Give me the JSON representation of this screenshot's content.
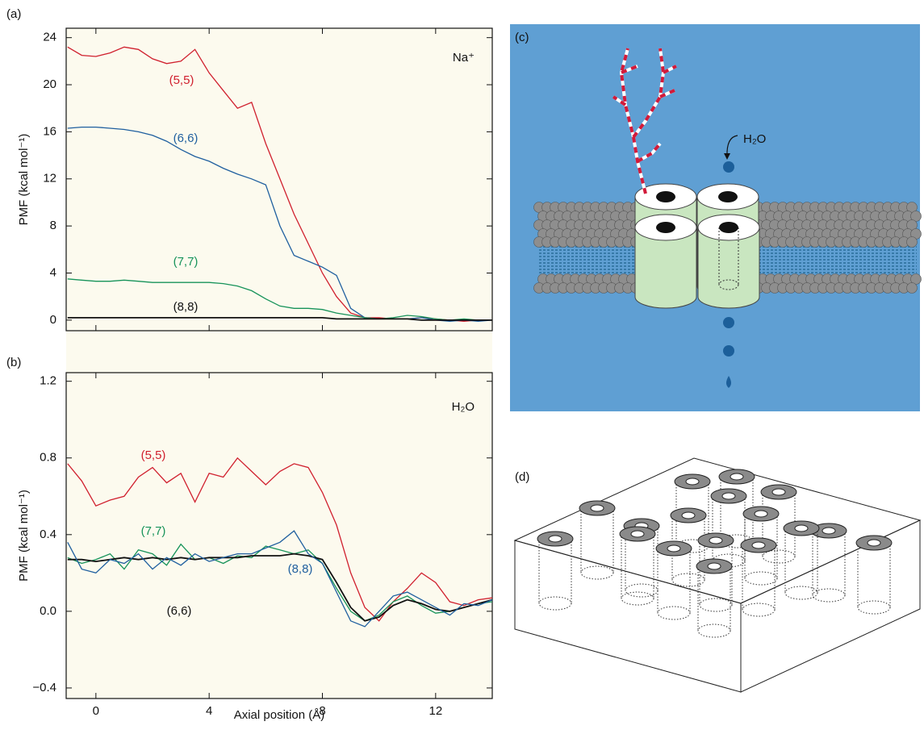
{
  "chart_data": [
    {
      "type": "line",
      "panel": "(a)",
      "annotation": "Na⁺",
      "ylabel": "PMF (kcal mol⁻¹)",
      "x": [
        -1,
        -0.5,
        0,
        0.5,
        1,
        1.5,
        2,
        2.5,
        3,
        3.5,
        4,
        4.5,
        5,
        5.5,
        6,
        6.5,
        7,
        7.5,
        8,
        8.5,
        9,
        9.5,
        10,
        10.5,
        11,
        11.5,
        12,
        12.5,
        13,
        13.5,
        14
      ],
      "xlim": [
        -1.05,
        14
      ],
      "ylim": [
        -0.9,
        24.8
      ],
      "yticks": [
        0,
        4,
        8,
        12,
        16,
        20,
        24
      ],
      "series": [
        {
          "name": "(5,5)",
          "color": "#d0202e",
          "values": [
            23.2,
            22.5,
            22.4,
            22.7,
            23.2,
            23.0,
            22.2,
            21.8,
            22.0,
            23.0,
            21.0,
            19.5,
            18.0,
            18.5,
            15.0,
            12.0,
            9.0,
            6.5,
            4.0,
            2.0,
            0.6,
            0.2,
            0.2,
            0.1,
            0.1,
            0.2,
            0.1,
            0.0,
            -0.1,
            0.0,
            0.0
          ]
        },
        {
          "name": "(6,6)",
          "color": "#1f5f9f",
          "values": [
            16.3,
            16.4,
            16.4,
            16.3,
            16.2,
            16.0,
            15.7,
            15.2,
            14.5,
            13.9,
            13.5,
            12.9,
            12.4,
            12.0,
            11.5,
            8.0,
            5.5,
            5.0,
            4.5,
            3.8,
            1.0,
            0.2,
            0.1,
            0.1,
            0.1,
            0.2,
            0.0,
            -0.1,
            0.0,
            -0.1,
            0.0
          ]
        },
        {
          "name": "(7,7)",
          "color": "#17935a",
          "values": [
            3.5,
            3.4,
            3.3,
            3.3,
            3.4,
            3.3,
            3.2,
            3.2,
            3.2,
            3.2,
            3.2,
            3.1,
            2.9,
            2.5,
            1.8,
            1.2,
            1.0,
            1.0,
            0.9,
            0.6,
            0.4,
            0.2,
            0.1,
            0.2,
            0.4,
            0.3,
            0.1,
            0.0,
            0.1,
            0.0,
            0.0
          ]
        },
        {
          "name": "(8,8)",
          "color": "#111111",
          "values": [
            0.2,
            0.2,
            0.2,
            0.2,
            0.2,
            0.2,
            0.2,
            0.2,
            0.2,
            0.2,
            0.2,
            0.2,
            0.2,
            0.2,
            0.2,
            0.2,
            0.2,
            0.2,
            0.2,
            0.1,
            0.1,
            0.1,
            0.1,
            0.1,
            0.1,
            0.0,
            0.0,
            0.0,
            0.0,
            0.0,
            0.0
          ]
        }
      ]
    },
    {
      "type": "line",
      "panel": "(b)",
      "annotation": "H₂O",
      "ylabel": "PMF (kcal mol⁻¹)",
      "xlabel": "Axial position (Å)",
      "x": [
        -1,
        -0.5,
        0,
        0.5,
        1,
        1.5,
        2,
        2.5,
        3,
        3.5,
        4,
        4.5,
        5,
        5.5,
        6,
        6.5,
        7,
        7.5,
        8,
        8.5,
        9,
        9.5,
        10,
        10.5,
        11,
        11.5,
        12,
        12.5,
        13,
        13.5,
        14
      ],
      "xlim": [
        -1.05,
        14
      ],
      "xticks": [
        0,
        4,
        8,
        12
      ],
      "ylim": [
        -0.455,
        1.245
      ],
      "yticks": [
        {
          "value": -0.4,
          "label": "−0.4"
        },
        {
          "value": 0,
          "label": "0.0"
        },
        0.4,
        0.8,
        1.2
      ],
      "series": [
        {
          "name": "(5,5)",
          "color": "#d0202e",
          "values": [
            0.77,
            0.68,
            0.55,
            0.58,
            0.6,
            0.7,
            0.75,
            0.67,
            0.72,
            0.57,
            0.72,
            0.7,
            0.8,
            0.73,
            0.66,
            0.73,
            0.77,
            0.75,
            0.62,
            0.45,
            0.2,
            0.02,
            -0.05,
            0.05,
            0.12,
            0.2,
            0.15,
            0.05,
            0.03,
            0.06,
            0.07
          ]
        },
        {
          "name": "(7,7)",
          "color": "#17935a",
          "values": [
            0.28,
            0.25,
            0.27,
            0.3,
            0.22,
            0.32,
            0.3,
            0.24,
            0.35,
            0.27,
            0.28,
            0.25,
            0.29,
            0.28,
            0.34,
            0.32,
            0.3,
            0.32,
            0.25,
            0.12,
            0.0,
            -0.05,
            -0.02,
            0.05,
            0.08,
            0.03,
            -0.01,
            0.0,
            0.02,
            0.04,
            0.05
          ]
        },
        {
          "name": "(6,6)",
          "color": "#111111",
          "values": [
            0.27,
            0.27,
            0.26,
            0.27,
            0.28,
            0.27,
            0.28,
            0.27,
            0.28,
            0.27,
            0.28,
            0.28,
            0.28,
            0.29,
            0.29,
            0.29,
            0.3,
            0.29,
            0.27,
            0.15,
            0.02,
            -0.05,
            -0.03,
            0.03,
            0.06,
            0.04,
            0.01,
            0.0,
            0.02,
            0.04,
            0.06
          ]
        },
        {
          "name": "(8,8)",
          "color": "#1f5f9f",
          "values": [
            0.36,
            0.22,
            0.2,
            0.27,
            0.25,
            0.3,
            0.22,
            0.28,
            0.24,
            0.3,
            0.26,
            0.28,
            0.3,
            0.3,
            0.33,
            0.36,
            0.42,
            0.3,
            0.25,
            0.1,
            -0.05,
            -0.08,
            0.0,
            0.08,
            0.1,
            0.06,
            0.02,
            -0.02,
            0.04,
            0.03,
            0.06
          ]
        }
      ]
    }
  ],
  "diagrams": {
    "c": {
      "label": "(c)",
      "molecule": "H₂O"
    },
    "d": {
      "label": "(d)"
    }
  }
}
